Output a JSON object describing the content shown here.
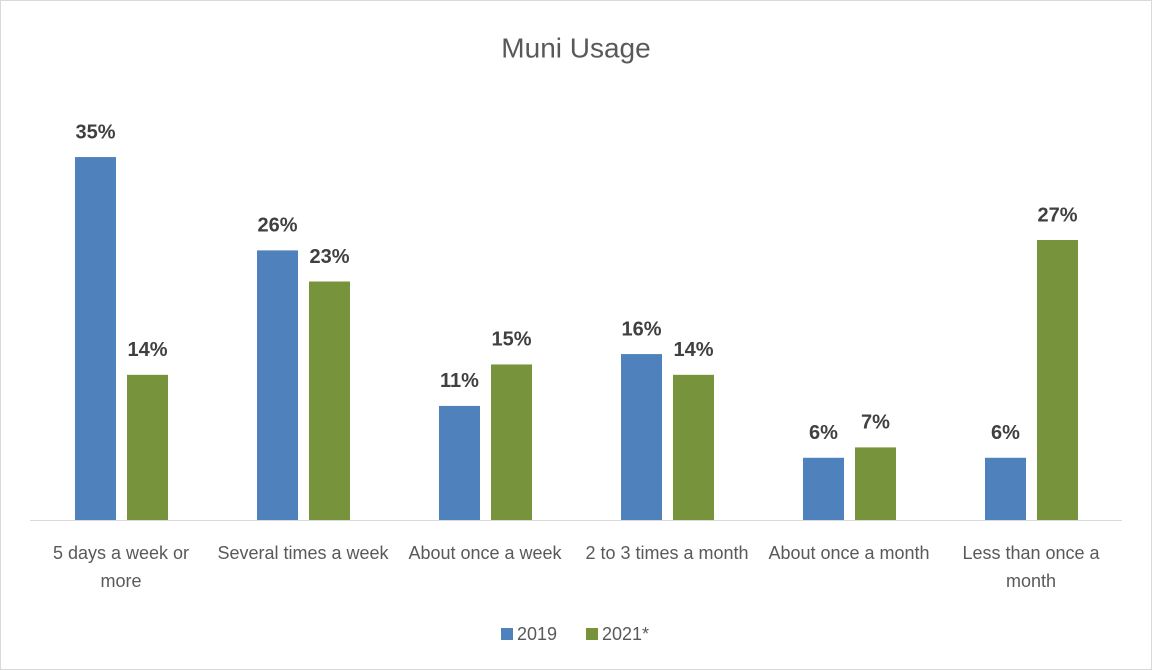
{
  "chart_data": {
    "type": "bar",
    "title": "Muni Usage",
    "categories": [
      "5 days a week or more",
      "Several times a week",
      "About once a week",
      "2 to 3 times a month",
      "About once a month",
      "Less than once a month"
    ],
    "series": [
      {
        "name": "2019",
        "color": "#4f81bd",
        "values": [
          35,
          26,
          11,
          16,
          6,
          6
        ],
        "value_labels": [
          "35%",
          "26%",
          "11%",
          "16%",
          "6%",
          "6%"
        ]
      },
      {
        "name": "2021*",
        "color": "#77933c",
        "values": [
          14,
          23,
          15,
          14,
          7,
          27
        ],
        "value_labels": [
          "14%",
          "23%",
          "15%",
          "14%",
          "7%",
          "27%"
        ]
      }
    ],
    "legend": "bottom"
  }
}
